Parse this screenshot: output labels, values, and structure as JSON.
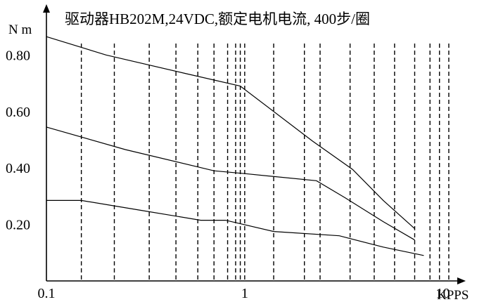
{
  "chart_data": {
    "type": "line",
    "title": "驱动器HB202M,24VDC,额定电机电流, 400步/圈",
    "ylabel": "N m",
    "xlabel": "KPPS",
    "x_scale": "log",
    "xlim": [
      0.1,
      12
    ],
    "ylim": [
      0,
      0.96
    ],
    "grid": "vertical-dashed",
    "x_tick_labels": [
      {
        "value": 0.1,
        "label": "0.1"
      },
      {
        "value": 1,
        "label": "1"
      },
      {
        "value": 10,
        "label": "10"
      }
    ],
    "y_tick_labels": [
      {
        "value": 0.2,
        "label": "0.20"
      },
      {
        "value": 0.4,
        "label": "0.40"
      },
      {
        "value": 0.6,
        "label": "0.60"
      },
      {
        "value": 0.8,
        "label": "0.80"
      }
    ],
    "grid_x": [
      0.15,
      0.22,
      0.33,
      0.45,
      0.58,
      0.7,
      0.82,
      0.9,
      0.95,
      1.0,
      1.4,
      2.0,
      2.4,
      3.4,
      4.5,
      5.7,
      7.2,
      8.6,
      9.6,
      10.7
    ],
    "series": [
      {
        "points": [
          [
            0.1,
            0.865
          ],
          [
            0.2,
            0.8
          ],
          [
            0.5,
            0.735
          ],
          [
            0.95,
            0.69
          ],
          [
            2.2,
            0.495
          ],
          [
            3.5,
            0.395
          ],
          [
            5.0,
            0.285
          ],
          [
            7.2,
            0.185
          ]
        ]
      },
      {
        "points": [
          [
            0.1,
            0.545
          ],
          [
            0.25,
            0.465
          ],
          [
            0.7,
            0.39
          ],
          [
            1.0,
            0.38
          ],
          [
            2.3,
            0.355
          ],
          [
            3.2,
            0.295
          ],
          [
            5.0,
            0.21
          ],
          [
            7.2,
            0.145
          ]
        ]
      },
      {
        "points": [
          [
            0.1,
            0.285
          ],
          [
            0.15,
            0.285
          ],
          [
            0.3,
            0.25
          ],
          [
            0.6,
            0.215
          ],
          [
            0.8,
            0.215
          ],
          [
            1.4,
            0.175
          ],
          [
            3.0,
            0.16
          ],
          [
            5.0,
            0.12
          ],
          [
            8.0,
            0.09
          ]
        ]
      }
    ]
  }
}
